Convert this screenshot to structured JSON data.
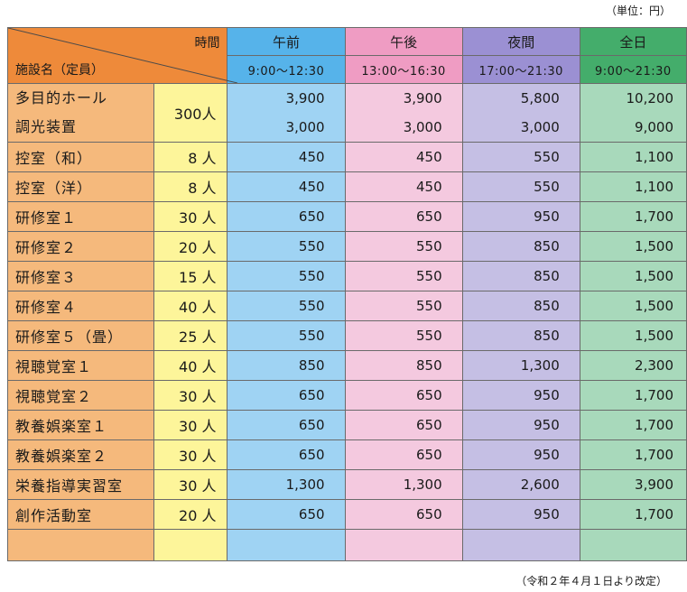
{
  "unit_label": "（単位：円）",
  "footnote": "（令和２年４月１日より改定）",
  "header": {
    "corner_top": "時間",
    "corner_bottom": "施設名（定員）",
    "periods": [
      {
        "label": "午前",
        "time": "9:00〜12:30"
      },
      {
        "label": "午後",
        "time": "13:00〜16:30"
      },
      {
        "label": "夜間",
        "time": "17:00〜21:30"
      },
      {
        "label": "全日",
        "time": "9:00〜21:30"
      }
    ]
  },
  "hall": {
    "capacity": "300人",
    "rows": [
      {
        "name": "多目的ホール",
        "am": "3,900",
        "pm": "3,900",
        "ev": "5,800",
        "all": "10,200"
      },
      {
        "name": "調光装置",
        "am": "3,000",
        "pm": "3,000",
        "ev": "3,000",
        "all": "9,000"
      }
    ]
  },
  "rooms": [
    {
      "name": "控室（和）",
      "cap": "8 人",
      "am": "450",
      "pm": "450",
      "ev": "550",
      "all": "1,100"
    },
    {
      "name": "控室（洋）",
      "cap": "8 人",
      "am": "450",
      "pm": "450",
      "ev": "550",
      "all": "1,100"
    },
    {
      "name": "研修室１",
      "cap": "30 人",
      "am": "650",
      "pm": "650",
      "ev": "950",
      "all": "1,700"
    },
    {
      "name": "研修室２",
      "cap": "20 人",
      "am": "550",
      "pm": "550",
      "ev": "850",
      "all": "1,500"
    },
    {
      "name": "研修室３",
      "cap": "15 人",
      "am": "550",
      "pm": "550",
      "ev": "850",
      "all": "1,500"
    },
    {
      "name": "研修室４",
      "cap": "40 人",
      "am": "550",
      "pm": "550",
      "ev": "850",
      "all": "1,500"
    },
    {
      "name": "研修室５（畳）",
      "cap": "25 人",
      "am": "550",
      "pm": "550",
      "ev": "850",
      "all": "1,500"
    },
    {
      "name": "視聴覚室１",
      "cap": "40 人",
      "am": "850",
      "pm": "850",
      "ev": "1,300",
      "all": "2,300"
    },
    {
      "name": "視聴覚室２",
      "cap": "30 人",
      "am": "650",
      "pm": "650",
      "ev": "950",
      "all": "1,700"
    },
    {
      "name": "教養娯楽室１",
      "cap": "30 人",
      "am": "650",
      "pm": "650",
      "ev": "950",
      "all": "1,700"
    },
    {
      "name": "教養娯楽室２",
      "cap": "30 人",
      "am": "650",
      "pm": "650",
      "ev": "950",
      "all": "1,700"
    },
    {
      "name": "栄養指導実習室",
      "cap": "30 人",
      "am": "1,300",
      "pm": "1,300",
      "ev": "2,600",
      "all": "3,900"
    },
    {
      "name": "創作活動室",
      "cap": "20 人",
      "am": "650",
      "pm": "650",
      "ev": "950",
      "all": "1,700"
    }
  ]
}
